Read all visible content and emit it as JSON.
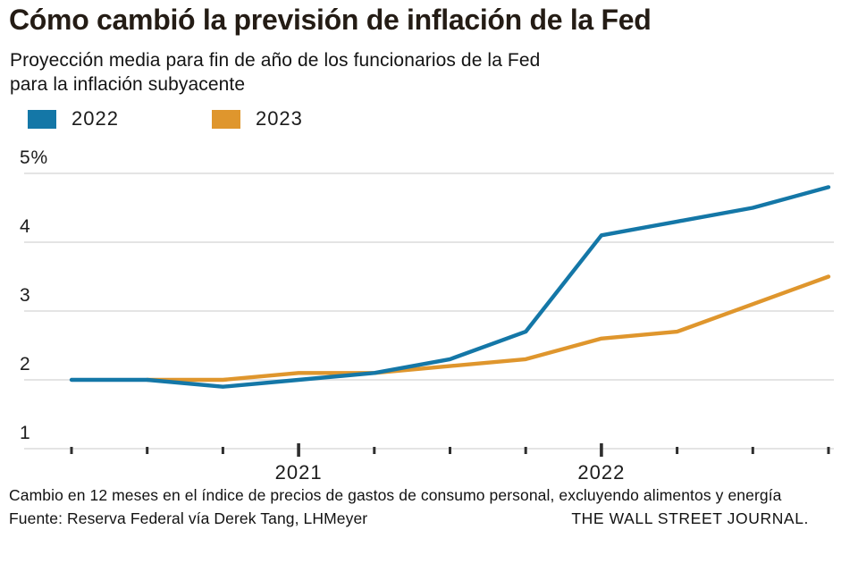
{
  "header": {
    "title": "Cómo cambió la previsión de inflación de la Fed",
    "subtitle_line1": "Proyección media para fin de año de los funcionarios de la Fed",
    "subtitle_line2": "para la inflación subyacente"
  },
  "legend": [
    {
      "label": "2022",
      "color": "#1477a7"
    },
    {
      "label": "2023",
      "color": "#df962d"
    }
  ],
  "chart_data": {
    "type": "line",
    "title": "Cómo cambió la previsión de inflación de la Fed",
    "subtitle": "Proyección media para fin de año de los funcionarios de la Fed para la inflación subyacente",
    "n_points": 11,
    "x_year_labels": [
      {
        "label": "2021",
        "index": 3
      },
      {
        "label": "2022",
        "index": 7
      }
    ],
    "y_ticks": [
      {
        "value": 5,
        "label": "5%"
      },
      {
        "value": 4,
        "label": "4"
      },
      {
        "value": 3,
        "label": "3"
      },
      {
        "value": 2,
        "label": "2"
      },
      {
        "value": 1,
        "label": "1"
      }
    ],
    "ylim": [
      1,
      5
    ],
    "grid": true,
    "legend_position": "top-left",
    "series": [
      {
        "name": "2022",
        "color": "#1477a7",
        "start_index": 0,
        "values": [
          2.0,
          2.0,
          1.9,
          2.0,
          2.1,
          2.3,
          2.7,
          4.1,
          4.3,
          4.5,
          4.8
        ]
      },
      {
        "name": "2023",
        "color": "#df962d",
        "start_index": 1,
        "values": [
          2.0,
          2.0,
          2.1,
          2.1,
          2.2,
          2.3,
          2.6,
          2.7,
          3.1,
          3.5
        ]
      }
    ]
  },
  "footer": {
    "note": "Cambio en 12 meses en el índice de precios de gastos de consumo personal, excluyendo alimentos y energía",
    "source": "Fuente: Reserva Federal vía Derek Tang, LHMeyer",
    "credit": "THE WALL STREET JOURNAL."
  }
}
